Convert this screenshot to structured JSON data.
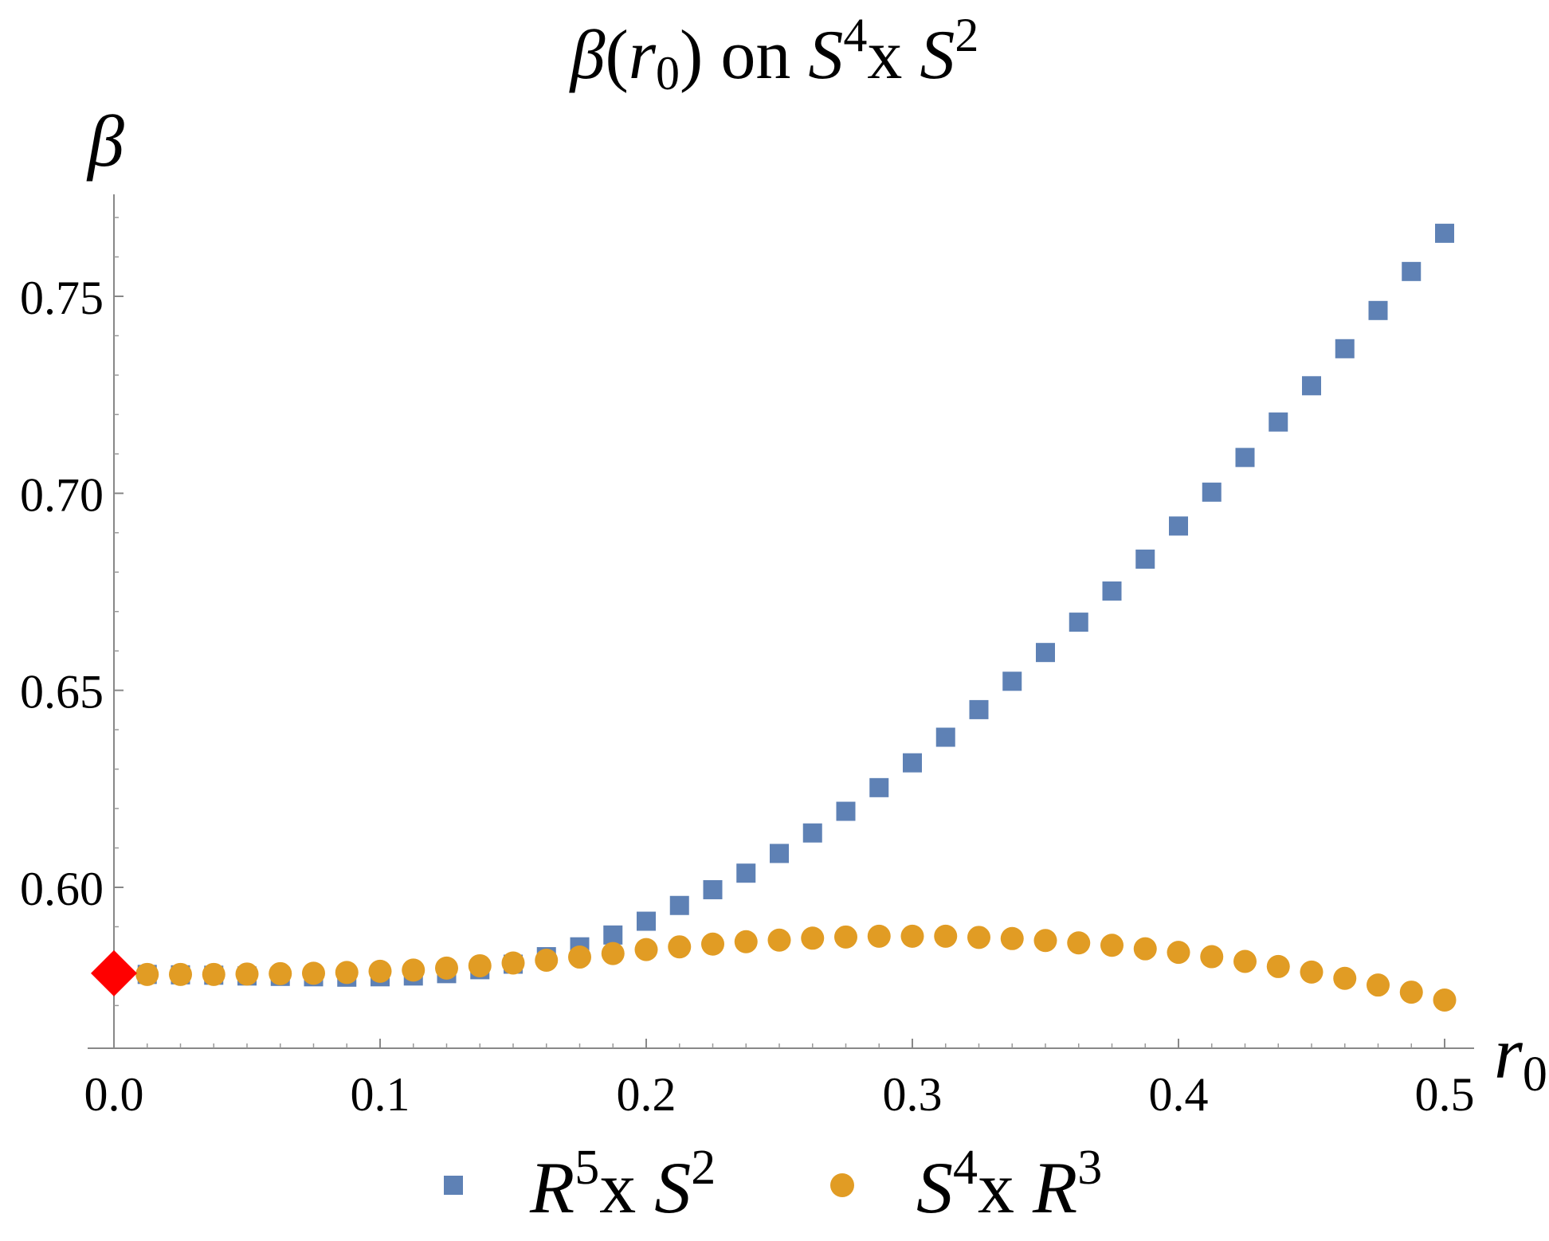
{
  "chart_data": {
    "type": "scatter",
    "title": {
      "beta": "β",
      "open": "(",
      "r": "r",
      "r_sub": "0",
      "close": ")",
      "on": " on ",
      "S1": "S",
      "S1_sup": "4",
      "x": "x ",
      "S2": "S",
      "S2_sup": "2"
    },
    "xlabel": {
      "base": "r",
      "sub": "0"
    },
    "ylabel": "β",
    "xlim": [
      0.0,
      0.51
    ],
    "ylim": [
      0.565,
      0.777
    ],
    "x_ticks": [
      0.0,
      0.1,
      0.2,
      0.3,
      0.4,
      0.5
    ],
    "x_tick_labels": [
      "0.0",
      "0.1",
      "0.2",
      "0.3",
      "0.4",
      "0.5"
    ],
    "y_ticks": [
      0.6,
      0.65,
      0.7,
      0.75
    ],
    "y_tick_labels": [
      "0.60",
      "0.65",
      "0.70",
      "0.75"
    ],
    "grid": false,
    "legend_position": "bottom",
    "series": [
      {
        "legend": {
          "base": "R",
          "sup": "5",
          "mid": "x ",
          "base2": "S",
          "sup2": "2"
        },
        "marker": "square",
        "color": "#5e81b5",
        "x": [
          0.0125,
          0.025,
          0.0375,
          0.05,
          0.0625,
          0.075,
          0.0875,
          0.1,
          0.1125,
          0.125,
          0.1375,
          0.15,
          0.1625,
          0.175,
          0.1875,
          0.2,
          0.2125,
          0.225,
          0.2375,
          0.25,
          0.2625,
          0.275,
          0.2875,
          0.3,
          0.3125,
          0.325,
          0.3375,
          0.35,
          0.3625,
          0.375,
          0.3875,
          0.4,
          0.4125,
          0.425,
          0.4375,
          0.45,
          0.4625,
          0.475,
          0.4875,
          0.5
        ],
        "y": [
          0.5779,
          0.5778,
          0.5777,
          0.5775,
          0.5774,
          0.5773,
          0.5772,
          0.5773,
          0.5775,
          0.5781,
          0.5791,
          0.5805,
          0.5824,
          0.5849,
          0.5879,
          0.5914,
          0.5954,
          0.5994,
          0.6036,
          0.6086,
          0.6138,
          0.6193,
          0.6253,
          0.6316,
          0.6381,
          0.6451,
          0.6523,
          0.6596,
          0.6673,
          0.6752,
          0.6833,
          0.6917,
          0.7003,
          0.7091,
          0.7181,
          0.7273,
          0.7367,
          0.7464,
          0.7563,
          0.766
        ]
      },
      {
        "legend": {
          "base": "S",
          "sup": "4",
          "mid": "x ",
          "base2": "R",
          "sup2": "3"
        },
        "marker": "circle",
        "color": "#e19c24",
        "x": [
          0.0125,
          0.025,
          0.0375,
          0.05,
          0.0625,
          0.075,
          0.0875,
          0.1,
          0.1125,
          0.125,
          0.1375,
          0.15,
          0.1625,
          0.175,
          0.1875,
          0.2,
          0.2125,
          0.225,
          0.2375,
          0.25,
          0.2625,
          0.275,
          0.2875,
          0.3,
          0.3125,
          0.325,
          0.3375,
          0.35,
          0.3625,
          0.375,
          0.3875,
          0.4,
          0.4125,
          0.425,
          0.4375,
          0.45,
          0.4625,
          0.475,
          0.4875,
          0.5
        ],
        "y": [
          0.5779,
          0.5779,
          0.5779,
          0.578,
          0.5781,
          0.5782,
          0.5784,
          0.5787,
          0.579,
          0.5795,
          0.5801,
          0.5808,
          0.5815,
          0.5823,
          0.5832,
          0.5842,
          0.5849,
          0.5856,
          0.5862,
          0.5866,
          0.5871,
          0.5874,
          0.5876,
          0.5876,
          0.5876,
          0.5873,
          0.587,
          0.5865,
          0.5859,
          0.5853,
          0.5844,
          0.5835,
          0.5824,
          0.5812,
          0.5799,
          0.5785,
          0.5769,
          0.5752,
          0.5734,
          0.5714
        ]
      }
    ],
    "special_point": {
      "marker": "diamond",
      "color": "#ff0000",
      "x": 0.0,
      "y": 0.5782
    }
  }
}
